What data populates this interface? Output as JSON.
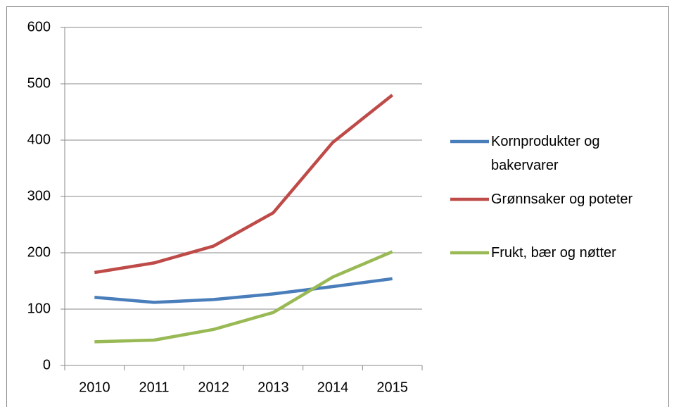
{
  "chart_data": {
    "type": "line",
    "categories": [
      "2010",
      "2011",
      "2012",
      "2013",
      "2014",
      "2015"
    ],
    "series": [
      {
        "name": "Kornprodukter og bakervarer",
        "color": "#4a7ebb",
        "values": [
          121,
          112,
          117,
          127,
          140,
          154
        ]
      },
      {
        "name": "Grønnsaker og poteter",
        "color": "#be4b48",
        "values": [
          165,
          182,
          212,
          271,
          396,
          480
        ]
      },
      {
        "name": "Frukt, bær og nøtter",
        "color": "#98b954",
        "values": [
          42,
          45,
          64,
          94,
          157,
          202
        ]
      }
    ],
    "ylim": [
      0,
      600
    ],
    "yticks": [
      0,
      100,
      200,
      300,
      400,
      500,
      600
    ],
    "grid": true,
    "legend": "right"
  }
}
